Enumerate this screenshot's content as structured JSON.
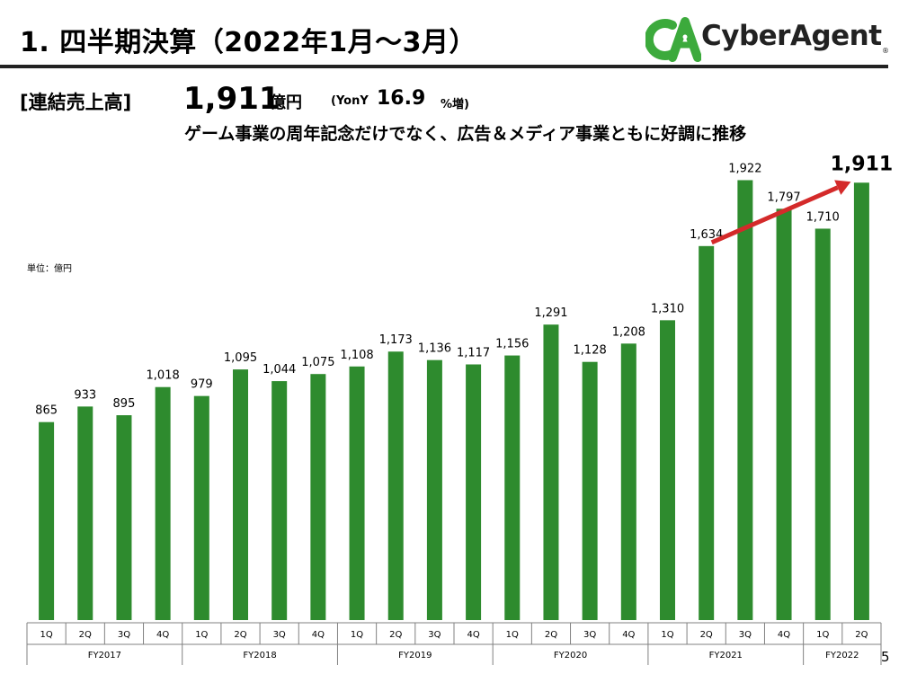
{
  "slide": {
    "title": "1. 四半期決算（2022年1月～3月）",
    "section_label": "[連結売上高]",
    "headline_value": "1,911",
    "headline_unit": "億円",
    "yoy_label": "(YonY",
    "yoy_value": "16.9",
    "yoy_suffix": "%増)",
    "subheadline": "ゲーム事業の周年記念だけでなく、広告＆メディア事業ともに好調に推移",
    "unit_note": "単位：億円",
    "page_number": "5",
    "logo_text": "CyberAgent",
    "logo_mark": "CA",
    "logo_registered": "®"
  },
  "colors": {
    "bar": "#2e8b2e",
    "arrow": "#d42a2a",
    "axis": "#808080",
    "logo_green": "#3caa3c"
  },
  "chart_data": {
    "type": "bar",
    "categories": [
      "1Q",
      "2Q",
      "3Q",
      "4Q",
      "1Q",
      "2Q",
      "3Q",
      "4Q",
      "1Q",
      "2Q",
      "3Q",
      "4Q",
      "1Q",
      "2Q",
      "3Q",
      "4Q",
      "1Q",
      "2Q",
      "3Q",
      "4Q",
      "1Q",
      "2Q"
    ],
    "groups": [
      {
        "label": "FY2017",
        "count": 4
      },
      {
        "label": "FY2018",
        "count": 4
      },
      {
        "label": "FY2019",
        "count": 4
      },
      {
        "label": "FY2020",
        "count": 4
      },
      {
        "label": "FY2021",
        "count": 4
      },
      {
        "label": "FY2022",
        "count": 2
      }
    ],
    "values": [
      865,
      933,
      895,
      1018,
      979,
      1095,
      1044,
      1075,
      1108,
      1173,
      1136,
      1117,
      1156,
      1291,
      1128,
      1208,
      1310,
      1634,
      1922,
      1797,
      1710,
      1911
    ],
    "value_labels": [
      "865",
      "933",
      "895",
      "1,018",
      "979",
      "1,095",
      "1,044",
      "1,075",
      "1,108",
      "1,173",
      "1,136",
      "1,117",
      "1,156",
      "1,291",
      "1,128",
      "1,208",
      "1,310",
      "1,634",
      "1,922",
      "1,797",
      "1,710",
      "1,911"
    ],
    "highlight_last": true,
    "arrow": {
      "from_index": 17,
      "to_index": 21
    },
    "ylabel": "",
    "xlabel": "",
    "grid": false,
    "legend": "none"
  }
}
